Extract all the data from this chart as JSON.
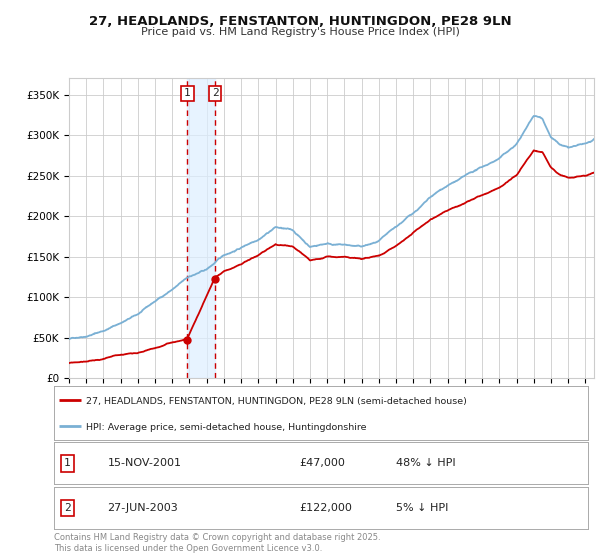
{
  "title": "27, HEADLANDS, FENSTANTON, HUNTINGDON, PE28 9LN",
  "subtitle": "Price paid vs. HM Land Registry's House Price Index (HPI)",
  "ylabel_ticks": [
    "£0",
    "£50K",
    "£100K",
    "£150K",
    "£200K",
    "£250K",
    "£300K",
    "£350K"
  ],
  "ylim": [
    0,
    370000
  ],
  "xlim_start": 1995.0,
  "xlim_end": 2025.5,
  "sale1_date": 2001.878,
  "sale1_price": 47000,
  "sale2_date": 2003.486,
  "sale2_price": 122000,
  "legend_line1": "27, HEADLANDS, FENSTANTON, HUNTINGDON, PE28 9LN (semi-detached house)",
  "legend_line2": "HPI: Average price, semi-detached house, Huntingdonshire",
  "footer": "Contains HM Land Registry data © Crown copyright and database right 2025.\nThis data is licensed under the Open Government Licence v3.0.",
  "red_color": "#cc0000",
  "blue_color": "#7ab0d4",
  "bg_color": "#ffffff",
  "grid_color": "#cccccc",
  "shade_color": "#ddeeff"
}
